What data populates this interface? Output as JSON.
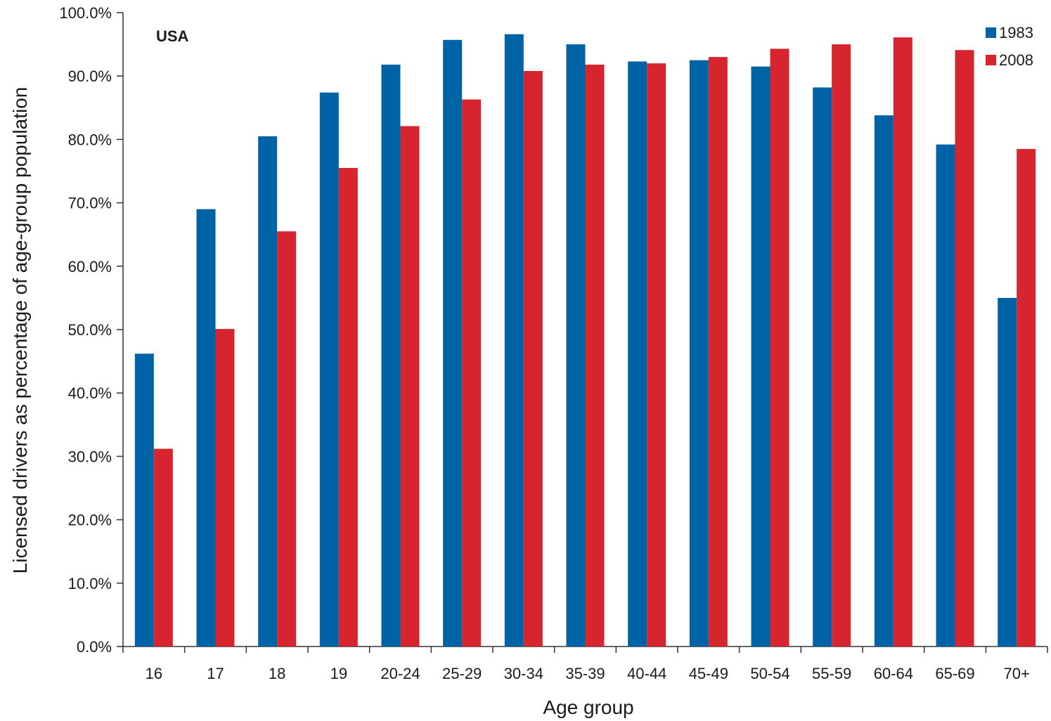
{
  "chart_data": {
    "type": "bar",
    "annotation": "USA",
    "xlabel": "Age group",
    "ylabel": "Licensed drivers as percentage of age-group population",
    "ylim": [
      0,
      100
    ],
    "yticks": [
      0,
      10,
      20,
      30,
      40,
      50,
      60,
      70,
      80,
      90,
      100
    ],
    "ytick_labels": [
      "0.0%",
      "10.0%",
      "20.0%",
      "30.0%",
      "40.0%",
      "50.0%",
      "60.0%",
      "70.0%",
      "80.0%",
      "90.0%",
      "100.0%"
    ],
    "categories": [
      "16",
      "17",
      "18",
      "19",
      "20-24",
      "25-29",
      "30-34",
      "35-39",
      "40-44",
      "45-49",
      "50-54",
      "55-59",
      "60-64",
      "65-69",
      "70+"
    ],
    "series": [
      {
        "name": "1983",
        "color": "#0063a6",
        "values": [
          46.2,
          69.0,
          80.5,
          87.4,
          91.8,
          95.7,
          96.6,
          95.0,
          92.3,
          92.5,
          91.5,
          88.2,
          83.8,
          79.2,
          55.0
        ]
      },
      {
        "name": "2008",
        "color": "#d7252f",
        "values": [
          31.2,
          50.1,
          65.5,
          75.5,
          82.1,
          86.3,
          90.8,
          91.8,
          92.0,
          93.0,
          94.3,
          95.0,
          96.1,
          94.1,
          78.5
        ]
      }
    ],
    "grid": false,
    "legend_position": "top-right"
  }
}
